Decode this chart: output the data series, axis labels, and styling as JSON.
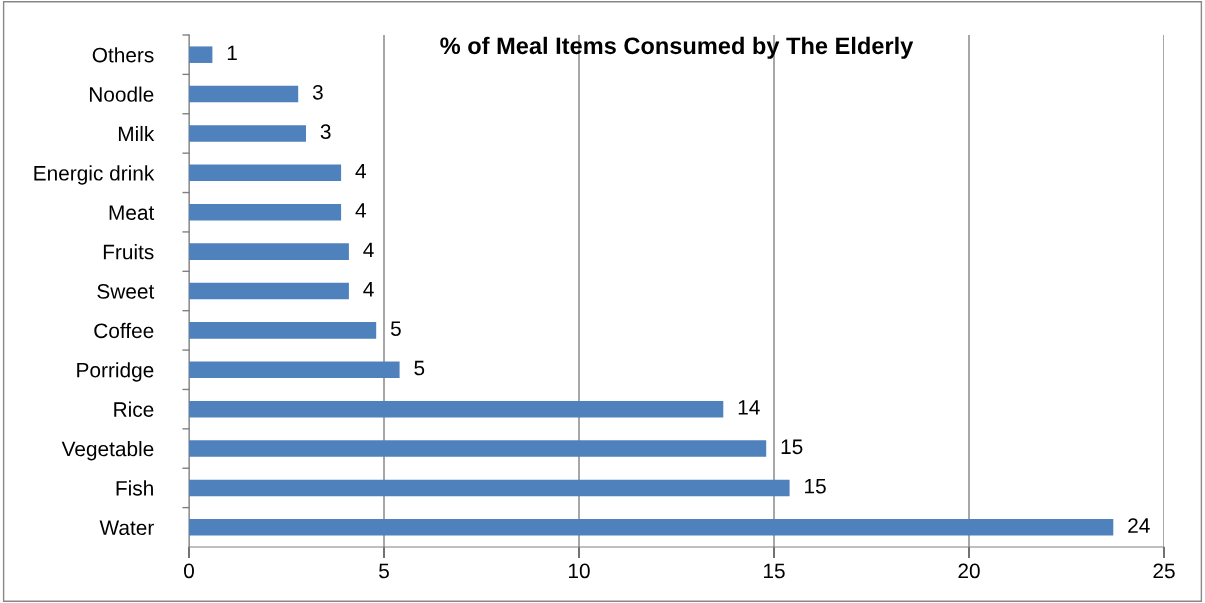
{
  "chart_data": {
    "type": "bar",
    "orientation": "horizontal",
    "title": "% of Meal Items Consumed by The Elderly",
    "categories": [
      "Others",
      "Noodle",
      "Milk",
      "Energic drink",
      "Meat",
      "Fruits",
      "Sweet",
      "Coffee",
      "Porridge",
      "Rice",
      "Vegetable",
      "Fish",
      "Water"
    ],
    "values": [
      0.6,
      2.8,
      3.0,
      3.9,
      3.9,
      4.1,
      4.1,
      4.8,
      5.4,
      13.7,
      14.8,
      15.4,
      23.7
    ],
    "value_labels": [
      "1",
      "3",
      "3",
      "4",
      "4",
      "4",
      "4",
      "5",
      "5",
      "14",
      "15",
      "15",
      "24"
    ],
    "color": "#4f81bd",
    "xlim": [
      0,
      25
    ],
    "xticks": [
      0,
      5,
      10,
      15,
      20,
      25
    ],
    "grid": "x",
    "legend": false
  }
}
